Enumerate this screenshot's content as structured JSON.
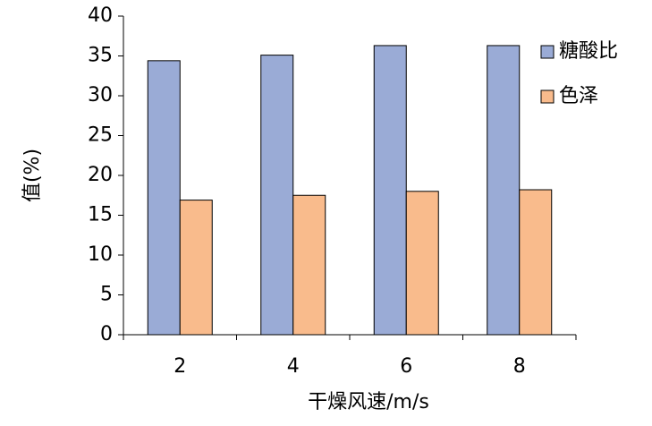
{
  "chart_data": {
    "type": "bar",
    "categories": [
      "2",
      "4",
      "6",
      "8"
    ],
    "series": [
      {
        "name": "糖酸比",
        "color": "#9aabd6",
        "values": [
          34.4,
          35.1,
          36.3,
          36.3
        ]
      },
      {
        "name": "色泽",
        "color": "#f9bb8c",
        "values": [
          16.9,
          17.5,
          18.0,
          18.2
        ]
      }
    ],
    "ylim": [
      0,
      40
    ],
    "yticks": [
      0,
      5,
      10,
      15,
      20,
      25,
      30,
      35,
      40
    ],
    "x_label": "干燥风速/m/s",
    "y_label": "值(%)",
    "legend": "right"
  }
}
